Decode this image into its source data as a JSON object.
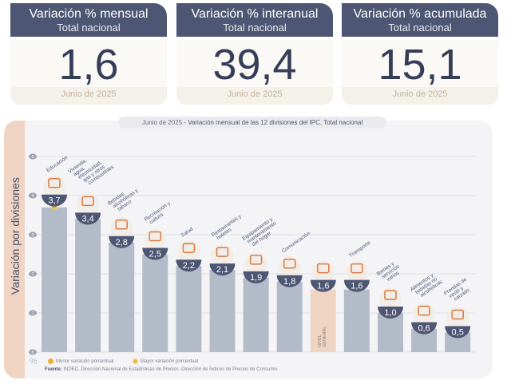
{
  "cards": [
    {
      "title": "Variación % mensual",
      "subtitle": "Total nacional",
      "value": "1,6",
      "date": "Junio de 2025"
    },
    {
      "title": "Variación % interanual",
      "subtitle": "Total nacional",
      "value": "39,4",
      "date": "Junio de 2025"
    },
    {
      "title": "Variación % acumulada",
      "subtitle": "Total nacional",
      "value": "15,1",
      "date": "Junio de 2025"
    }
  ],
  "colors": {
    "header": "#4d5673",
    "bar": "#b3bbc8",
    "bar_general": "#efd4c4",
    "badge": "#4d5673",
    "marker": "#f0b030",
    "side": "#efd4c4"
  },
  "chart_data": {
    "type": "bar",
    "title_date": "Junio de 2025",
    "title": " - Variación mensual de las 12 divisiones del IPC. Total nacional",
    "ylabel": "Variación por divisiones",
    "yunit": "%",
    "ylim": [
      0,
      5
    ],
    "yticks": [
      "0",
      "1",
      "2",
      "3",
      "4",
      "5"
    ],
    "grid": true,
    "categories": [
      {
        "label": "Educación",
        "value": 3.7,
        "display": "3,7",
        "icon": "book-icon",
        "marker": "max"
      },
      {
        "label": "Vivienda, agua, electricidad, gas y otros combustibles",
        "value": 3.4,
        "display": "3,4",
        "icon": "lightbulb-icon"
      },
      {
        "label": "Bebidas alcohólicas y tabaco",
        "value": 2.8,
        "display": "2,8",
        "icon": "bottle-icon"
      },
      {
        "label": "Recreación y cultura",
        "value": 2.5,
        "display": "2,5",
        "icon": "umbrella-icon"
      },
      {
        "label": "Salud",
        "value": 2.2,
        "display": "2,2",
        "icon": "first-aid-icon"
      },
      {
        "label": "Restaurantes y hoteles",
        "value": 2.1,
        "display": "2,1",
        "icon": "plate-icon"
      },
      {
        "label": "Equipamiento y mantenimiento del hogar",
        "value": 1.9,
        "display": "1,9",
        "icon": "appliance-icon"
      },
      {
        "label": "Comunicación",
        "value": 1.8,
        "display": "1,8",
        "icon": "phone-icon"
      },
      {
        "label": "NIVEL GENERAL",
        "value": 1.6,
        "display": "1,6",
        "icon": "basket-icon",
        "general": true
      },
      {
        "label": "Transporte",
        "value": 1.6,
        "display": "1,6",
        "icon": "car-icon"
      },
      {
        "label": "Bienes y servicios varios",
        "value": 1.0,
        "display": "1,0",
        "icon": "scissors-icon"
      },
      {
        "label": "Alimentos y bebidas no alcohólicas",
        "value": 0.6,
        "display": "0,6",
        "icon": "food-icon"
      },
      {
        "label": "Prendas de vestir y calzado",
        "value": 0.5,
        "display": "0,5",
        "icon": "shirt-icon",
        "marker": "min"
      }
    ],
    "legend": {
      "min": "Menor variación porcentual",
      "max": "Mayor variación porcentual"
    }
  },
  "source": {
    "label": "Fuente:",
    "text": " INDEC, Dirección Nacional de Estadísticas de Precios. Dirección de Índices de Precios de Consumo."
  }
}
